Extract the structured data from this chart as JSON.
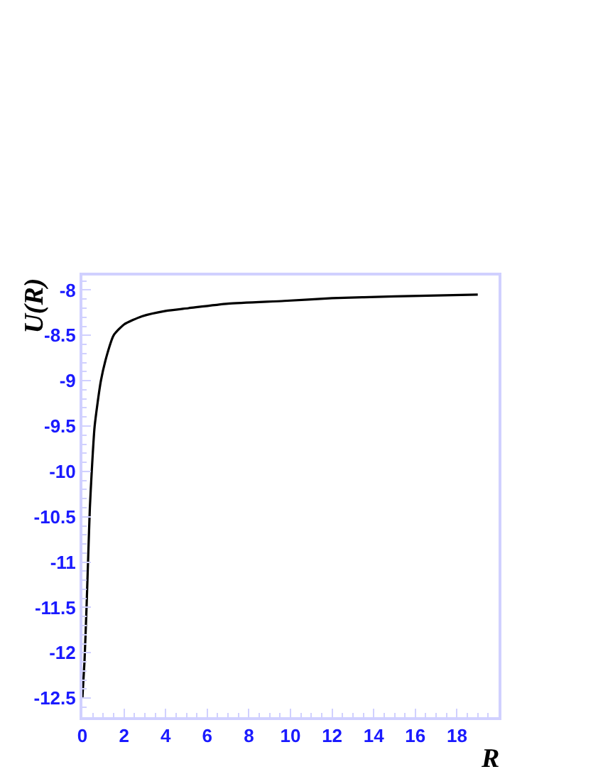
{
  "chart_data": {
    "type": "line",
    "xlabel": "R",
    "ylabel": "U(R)",
    "x": [
      0,
      0.1,
      0.2,
      0.3,
      0.36,
      0.45,
      0.59,
      0.89,
      1.2,
      1.5,
      2,
      2.86,
      4,
      5.1,
      7,
      9.7,
      12,
      15,
      19
    ],
    "series": [
      {
        "color": "#000000",
        "values": [
          -12.5,
          -12.1,
          -11.5,
          -10.8,
          -10.4,
          -10.0,
          -9.5,
          -9.0,
          -8.7,
          -8.5,
          -8.38,
          -8.29,
          -8.23,
          -8.2,
          -8.15,
          -8.12,
          -8.09,
          -8.07,
          -8.05
        ]
      }
    ],
    "xlim": [
      0,
      20
    ],
    "ylim": [
      -12.71,
      -7.84
    ],
    "xticks": [
      0,
      2,
      4,
      6,
      8,
      10,
      12,
      14,
      16,
      18
    ],
    "yticks": [
      -12.5,
      -12,
      -11.5,
      -11,
      -10.5,
      -10,
      -9.5,
      -9,
      -8.5,
      -8
    ],
    "marker": "none",
    "line_style": "solid"
  }
}
